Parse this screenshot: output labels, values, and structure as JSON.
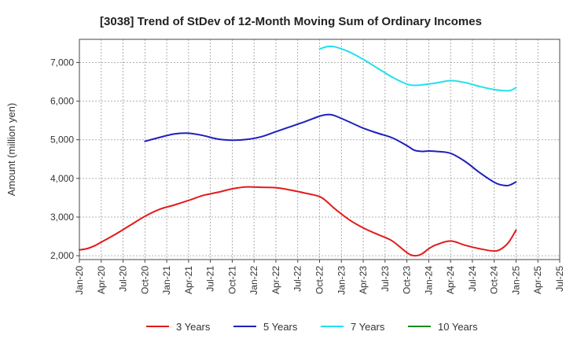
{
  "chart_data": {
    "type": "line",
    "title": "[3038]  Trend of StDev of 12-Month Moving Sum of Ordinary Incomes",
    "xlabel": "",
    "ylabel": "Amount (million yen)",
    "ylim": [
      1900,
      7600
    ],
    "yticks": [
      2000,
      3000,
      4000,
      5000,
      6000,
      7000
    ],
    "ytick_labels": [
      "2,000",
      "3,000",
      "4,000",
      "5,000",
      "6,000",
      "7,000"
    ],
    "xticks": [
      "2020-01",
      "2020-04",
      "2020-07",
      "2020-10",
      "2021-01",
      "2021-04",
      "2021-07",
      "2021-10",
      "2022-01",
      "2022-04",
      "2022-07",
      "2022-10",
      "2023-01",
      "2023-04",
      "2023-07",
      "2023-10",
      "2024-01",
      "2024-04",
      "2024-07",
      "2024-10",
      "2025-01",
      "2025-04",
      "2025-07"
    ],
    "xtick_labels": [
      "Jan-20",
      "Apr-20",
      "Jul-20",
      "Oct-20",
      "Jan-21",
      "Apr-21",
      "Jul-21",
      "Oct-21",
      "Jan-22",
      "Apr-22",
      "Jul-22",
      "Oct-22",
      "Jan-23",
      "Apr-23",
      "Jul-23",
      "Oct-23",
      "Jan-24",
      "Apr-24",
      "Jul-24",
      "Oct-24",
      "Jan-25",
      "Apr-25",
      "Jul-25"
    ],
    "grid": true,
    "legend_position": "bottom",
    "series": [
      {
        "name": "3 Years",
        "color": "#e31a1c",
        "x": [
          "2020-01",
          "2020-02",
          "2020-03",
          "2020-04",
          "2020-06",
          "2020-08",
          "2020-10",
          "2020-12",
          "2021-02",
          "2021-04",
          "2021-06",
          "2021-08",
          "2021-10",
          "2021-12",
          "2022-02",
          "2022-04",
          "2022-06",
          "2022-08",
          "2022-10",
          "2022-11",
          "2022-12",
          "2023-02",
          "2023-04",
          "2023-06",
          "2023-08",
          "2023-10",
          "2023-11",
          "2023-12",
          "2024-01",
          "2024-02",
          "2024-04",
          "2024-06",
          "2024-08",
          "2024-10",
          "2024-11",
          "2024-12",
          "2025-01"
        ],
        "y": [
          2150,
          2180,
          2250,
          2350,
          2560,
          2790,
          3020,
          3200,
          3310,
          3430,
          3560,
          3640,
          3730,
          3780,
          3770,
          3760,
          3700,
          3620,
          3530,
          3400,
          3230,
          2940,
          2720,
          2550,
          2380,
          2080,
          2000,
          2040,
          2180,
          2280,
          2380,
          2270,
          2180,
          2120,
          2180,
          2350,
          2660
        ]
      },
      {
        "name": "5 Years",
        "color": "#1f1fbf",
        "x": [
          "2020-10",
          "2020-12",
          "2021-02",
          "2021-04",
          "2021-06",
          "2021-08",
          "2021-10",
          "2021-12",
          "2022-02",
          "2022-04",
          "2022-06",
          "2022-08",
          "2022-10",
          "2022-11",
          "2022-12",
          "2023-02",
          "2023-04",
          "2023-06",
          "2023-08",
          "2023-10",
          "2023-11",
          "2023-12",
          "2024-01",
          "2024-02",
          "2024-04",
          "2024-06",
          "2024-08",
          "2024-10",
          "2024-11",
          "2024-12",
          "2025-01"
        ],
        "y": [
          4960,
          5060,
          5150,
          5170,
          5110,
          5020,
          4990,
          5010,
          5080,
          5210,
          5340,
          5470,
          5610,
          5650,
          5630,
          5470,
          5300,
          5170,
          5050,
          4850,
          4730,
          4700,
          4710,
          4700,
          4650,
          4440,
          4150,
          3900,
          3830,
          3820,
          3910
        ]
      },
      {
        "name": "7 Years",
        "color": "#22e0ee",
        "x": [
          "2022-10",
          "2022-11",
          "2022-12",
          "2023-02",
          "2023-04",
          "2023-06",
          "2023-08",
          "2023-10",
          "2023-11",
          "2023-12",
          "2024-02",
          "2024-04",
          "2024-06",
          "2024-08",
          "2024-10",
          "2024-12",
          "2025-01"
        ],
        "y": [
          7350,
          7410,
          7410,
          7280,
          7080,
          6850,
          6620,
          6440,
          6410,
          6420,
          6470,
          6530,
          6480,
          6380,
          6300,
          6270,
          6350
        ]
      },
      {
        "name": "10 Years",
        "color": "#1e8a1e",
        "x": [],
        "y": []
      }
    ]
  }
}
